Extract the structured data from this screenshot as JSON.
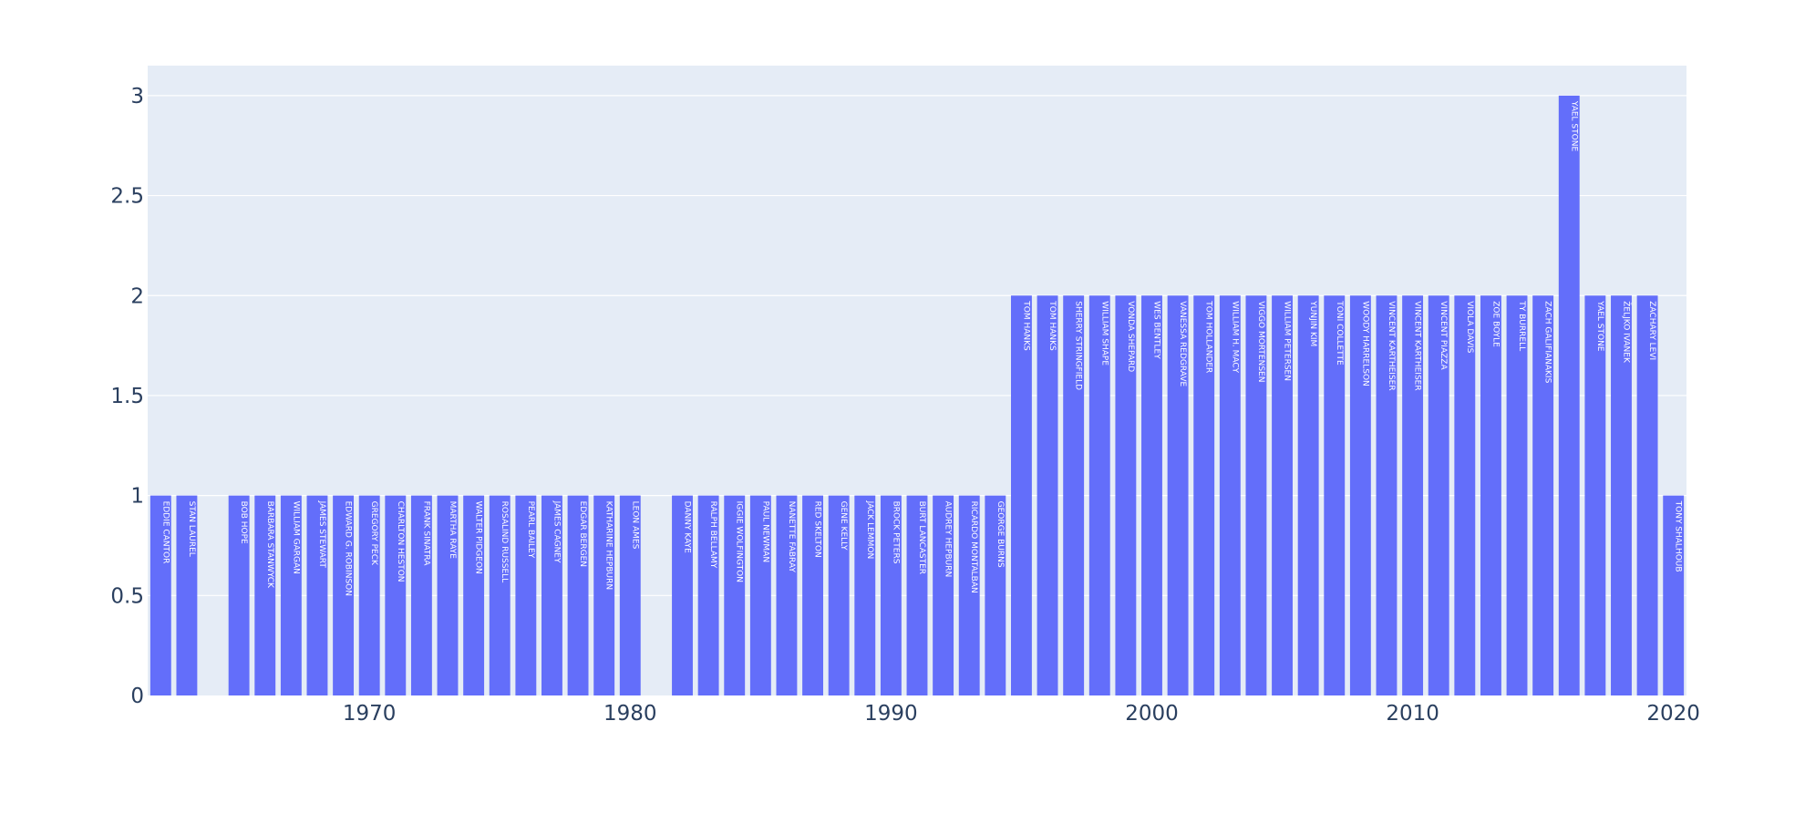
{
  "chart_data": {
    "type": "bar",
    "title": "",
    "xlabel": "",
    "ylabel": "",
    "xlim": [
      1961.5,
      2020.5
    ],
    "ylim": [
      0,
      3.15
    ],
    "x_ticks": [
      1970,
      1980,
      1990,
      2000,
      2010,
      2020
    ],
    "y_ticks": [
      0,
      0.5,
      1,
      1.5,
      2,
      2.5,
      3
    ],
    "y_tick_labels": [
      "0",
      "0.5",
      "1",
      "1.5",
      "2",
      "2.5",
      "3"
    ],
    "grid": true,
    "legend": "none",
    "colors": {
      "bar": "#636efa",
      "plot_bg": "#e5ecf6",
      "grid": "#ffffff",
      "tick_text": "#2a3f5f",
      "bar_text": "#ffffff"
    },
    "bars": [
      {
        "x": 1962,
        "value": 1,
        "label": "EDDIE CANTOR"
      },
      {
        "x": 1963,
        "value": 1,
        "label": "STAN LAUREL"
      },
      {
        "x": 1965,
        "value": 1,
        "label": "BOB HOPE"
      },
      {
        "x": 1966,
        "value": 1,
        "label": "BARBARA STANWYCK"
      },
      {
        "x": 1967,
        "value": 1,
        "label": "WILLIAM GARGAN"
      },
      {
        "x": 1968,
        "value": 1,
        "label": "JAMES STEWART"
      },
      {
        "x": 1969,
        "value": 1,
        "label": "EDWARD G. ROBINSON"
      },
      {
        "x": 1970,
        "value": 1,
        "label": "GREGORY PECK"
      },
      {
        "x": 1971,
        "value": 1,
        "label": "CHARLTON HESTON"
      },
      {
        "x": 1972,
        "value": 1,
        "label": "FRANK SINATRA"
      },
      {
        "x": 1973,
        "value": 1,
        "label": "MARTHA RAYE"
      },
      {
        "x": 1974,
        "value": 1,
        "label": "WALTER PIDGEON"
      },
      {
        "x": 1975,
        "value": 1,
        "label": "ROSALIND RUSSELL"
      },
      {
        "x": 1976,
        "value": 1,
        "label": "PEARL BAILEY"
      },
      {
        "x": 1977,
        "value": 1,
        "label": "JAMES CAGNEY"
      },
      {
        "x": 1978,
        "value": 1,
        "label": "EDGAR BERGEN"
      },
      {
        "x": 1979,
        "value": 1,
        "label": "KATHARINE HEPBURN"
      },
      {
        "x": 1980,
        "value": 1,
        "label": "LEON AMES"
      },
      {
        "x": 1982,
        "value": 1,
        "label": "DANNY KAYE"
      },
      {
        "x": 1983,
        "value": 1,
        "label": "RALPH BELLAMY"
      },
      {
        "x": 1984,
        "value": 1,
        "label": "IGGIE WOLFINGTON"
      },
      {
        "x": 1985,
        "value": 1,
        "label": "PAUL NEWMAN"
      },
      {
        "x": 1986,
        "value": 1,
        "label": "NANETTE FABRAY"
      },
      {
        "x": 1987,
        "value": 1,
        "label": "RED SKELTON"
      },
      {
        "x": 1988,
        "value": 1,
        "label": "GENE KELLY"
      },
      {
        "x": 1989,
        "value": 1,
        "label": "JACK LEMMON"
      },
      {
        "x": 1990,
        "value": 1,
        "label": "BROCK PETERS"
      },
      {
        "x": 1991,
        "value": 1,
        "label": "BURT LANCASTER"
      },
      {
        "x": 1992,
        "value": 1,
        "label": "AUDREY HEPBURN"
      },
      {
        "x": 1993,
        "value": 1,
        "label": "RICARDO MONTALBAN"
      },
      {
        "x": 1994,
        "value": 1,
        "label": "GEORGE BURNS"
      },
      {
        "x": 1995,
        "value": 2,
        "label": "TOM HANKS"
      },
      {
        "x": 1996,
        "value": 2,
        "label": "TOM HANKS"
      },
      {
        "x": 1997,
        "value": 2,
        "label": "SHERRY STRINGFIELD"
      },
      {
        "x": 1998,
        "value": 2,
        "label": "WILLIAM SHAPE"
      },
      {
        "x": 1999,
        "value": 2,
        "label": "VONDA SHEPARD"
      },
      {
        "x": 2000,
        "value": 2,
        "label": "WES BENTLEY"
      },
      {
        "x": 2001,
        "value": 2,
        "label": "VANESSA REDGRAVE"
      },
      {
        "x": 2002,
        "value": 2,
        "label": "TOM HOLLANDER"
      },
      {
        "x": 2003,
        "value": 2,
        "label": "WILLIAM H. MACY"
      },
      {
        "x": 2004,
        "value": 2,
        "label": "VIGGO MORTENSEN"
      },
      {
        "x": 2005,
        "value": 2,
        "label": "WILLIAM PETERSEN"
      },
      {
        "x": 2006,
        "value": 2,
        "label": "YUNJIN KIM"
      },
      {
        "x": 2007,
        "value": 2,
        "label": "TONI COLLETTE"
      },
      {
        "x": 2008,
        "value": 2,
        "label": "WOODY HARRELSON"
      },
      {
        "x": 2009,
        "value": 2,
        "label": "VINCENT KARTHEISER"
      },
      {
        "x": 2010,
        "value": 2,
        "label": "VINCENT KARTHEISER"
      },
      {
        "x": 2011,
        "value": 2,
        "label": "VINCENT PIAZZA"
      },
      {
        "x": 2012,
        "value": 2,
        "label": "VIOLA DAVIS"
      },
      {
        "x": 2013,
        "value": 2,
        "label": "ZOE BOYLE"
      },
      {
        "x": 2014,
        "value": 2,
        "label": "TY BURRELL"
      },
      {
        "x": 2015,
        "value": 2,
        "label": "ZACH GALIFIANAKIS"
      },
      {
        "x": 2016,
        "value": 3,
        "label": "YAEL STONE"
      },
      {
        "x": 2017,
        "value": 2,
        "label": "YAEL STONE"
      },
      {
        "x": 2018,
        "value": 2,
        "label": "ŽELJKO IVANEK"
      },
      {
        "x": 2019,
        "value": 2,
        "label": "ZACHARY LEVI"
      },
      {
        "x": 2020,
        "value": 1,
        "label": "TONY SHALHOUB"
      }
    ]
  }
}
